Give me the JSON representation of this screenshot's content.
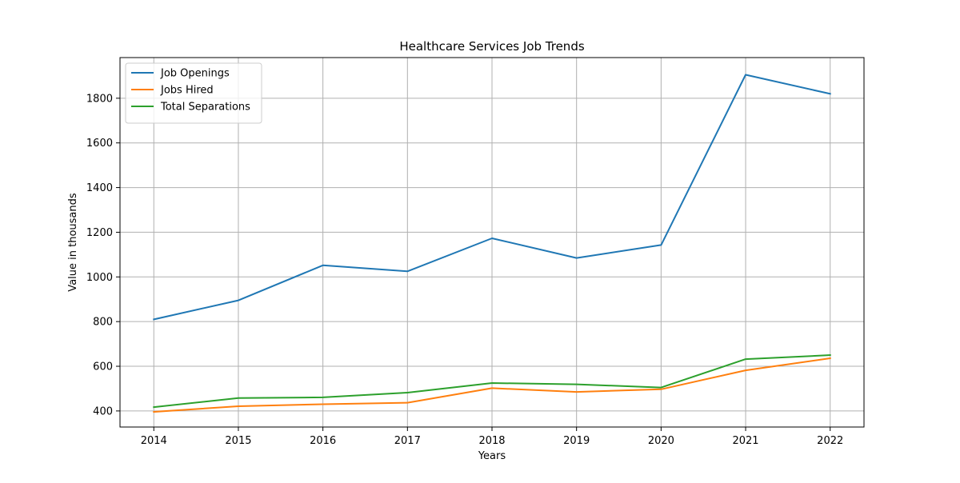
{
  "chart_data": {
    "type": "line",
    "title": "Healthcare Services Job Trends",
    "xlabel": "Years",
    "ylabel": "Value in thousands",
    "x": [
      2014,
      2015,
      2016,
      2017,
      2018,
      2019,
      2020,
      2021,
      2022
    ],
    "x_tick_labels": [
      "2014",
      "2015",
      "2016",
      "2017",
      "2018",
      "2019",
      "2020",
      "2021",
      "2022"
    ],
    "y_ticks": [
      400,
      600,
      800,
      1000,
      1200,
      1400,
      1600,
      1800
    ],
    "y_tick_labels": [
      "400",
      "600",
      "800",
      "1000",
      "1200",
      "1400",
      "1600",
      "1800"
    ],
    "xlim": [
      2013.6,
      2022.4
    ],
    "ylim": [
      328,
      1982
    ],
    "grid": true,
    "legend_position": "top-left",
    "series": [
      {
        "name": "Job Openings",
        "color": "#1f77b4",
        "values": [
          810,
          895,
          1052,
          1025,
          1173,
          1085,
          1143,
          1905,
          1820
        ]
      },
      {
        "name": "Jobs Hired",
        "color": "#ff7f0e",
        "values": [
          396,
          421,
          430,
          437,
          502,
          485,
          497,
          582,
          636
        ]
      },
      {
        "name": "Total Separations",
        "color": "#2ca02c",
        "values": [
          417,
          458,
          461,
          482,
          525,
          519,
          505,
          632,
          650
        ]
      }
    ]
  }
}
